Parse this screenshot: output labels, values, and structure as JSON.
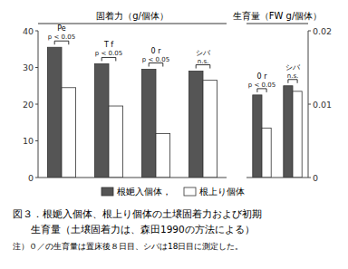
{
  "chart_data": [
    {
      "type": "bar",
      "title": "固着力（g/個体）",
      "categories": [
        "Pe",
        "T f",
        "0 r",
        "シバ"
      ],
      "annotations": [
        "p < 0.05",
        "p < 0.05",
        "p < 0.05",
        "n.s."
      ],
      "series": [
        {
          "name": "根㛂入個体，",
          "color": "#555555",
          "values": [
            35.5,
            31.0,
            29.5,
            29.0
          ]
        },
        {
          "name": "根上り個体",
          "color": "#ffffff",
          "values": [
            24.5,
            19.5,
            12.0,
            26.5
          ]
        }
      ],
      "ylim": [
        0,
        40
      ],
      "yticks": [
        0,
        10,
        20,
        30,
        40
      ],
      "grid": false,
      "legend": "bottom"
    },
    {
      "type": "bar",
      "title": "生育量（FW g/個体）",
      "categories": [
        "0 r",
        "シバ"
      ],
      "annotations": [
        "p < 0.05",
        "n.s."
      ],
      "series": [
        {
          "color": "#555555",
          "values": [
            0.01125,
            0.0125
          ]
        },
        {
          "color": "#ffffff",
          "values": [
            0.00675,
            0.01175
          ]
        }
      ],
      "ylim": [
        0,
        0.02
      ],
      "yticks": [
        0,
        0.01,
        0.02
      ],
      "grid": false
    }
  ],
  "caption": [
    "図３．根㛂入個体、根上り個体の土壌固着力および初期",
    "生育量（土壌固着力は、森田1990の方法による）",
    "注）０／の生育量は置床後８日目、シバは18日目に測定した。"
  ]
}
